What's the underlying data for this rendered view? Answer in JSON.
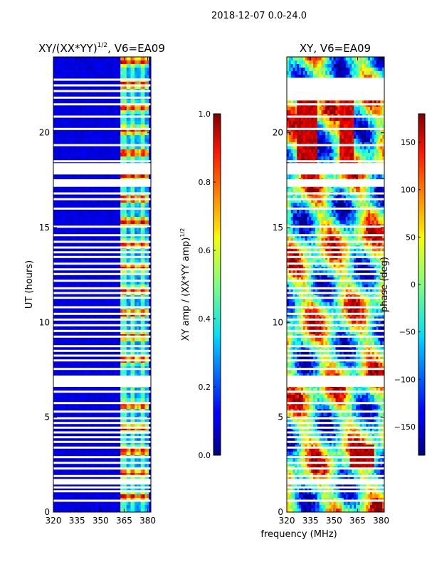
{
  "suptitle": "2018-12-07 0.0-24.0",
  "xlabel": "frequency (MHz)",
  "ylabel": "UT (hours)",
  "chart_data": [
    {
      "type": "heatmap",
      "id": "amp",
      "title": "XY/(XX*YY)",
      "title_sup": "1/2",
      "title_tail": ", V6=EA09",
      "x_range": [
        320,
        382
      ],
      "x_ticks": [
        320,
        335,
        350,
        365,
        380
      ],
      "y_range": [
        0,
        24
      ],
      "y_ticks": [
        0,
        5,
        10,
        15,
        20
      ],
      "description": "normalized XY amplitude per frequency channel and UT; mostly low (~0.05), elevated 0.3-0.9 in channels 363-381 MHz",
      "flagged_ut_hours": [
        0.6,
        1.1,
        1.3,
        1.55,
        1.9,
        2.3,
        2.6,
        2.9,
        3.4,
        3.7,
        3.95,
        4.2,
        4.45,
        4.7,
        4.95,
        5.3,
        5.75,
        6.35,
        6.9,
        7.1,
        7.55,
        8.0,
        8.25,
        8.5,
        8.75,
        9.25,
        9.55,
        9.85,
        10.15,
        10.45,
        10.8,
        11.3,
        11.55,
        11.8,
        12.2,
        12.55,
        12.8,
        13.1,
        13.45,
        13.7,
        13.95,
        14.25,
        14.6,
        15.05,
        16.0,
        16.5,
        16.8,
        17.35,
        18.5,
        19.35,
        20.2,
        20.85,
        21.5,
        21.85,
        22.2,
        22.5,
        22.8
      ],
      "flagged_ut_ranges": [
        [
          1.45,
          1.75
        ],
        [
          6.6,
          7.2
        ],
        [
          17.15,
          17.55
        ],
        [
          17.8,
          18.4
        ]
      ],
      "colorbar": {
        "label": "XY amp / (XX*YY amp)",
        "label_sup": "1/2",
        "range": [
          0.0,
          1.0
        ],
        "ticks": [
          "0.0",
          "0.2",
          "0.4",
          "0.6",
          "0.8",
          "1.0"
        ]
      }
    },
    {
      "type": "heatmap",
      "id": "phase",
      "title": "XY, V6=EA09",
      "x_range": [
        320,
        382
      ],
      "x_ticks": [
        320,
        335,
        350,
        365,
        380
      ],
      "y_range": [
        0,
        24
      ],
      "y_ticks": [
        0,
        5,
        10,
        15,
        20
      ],
      "description": "XY phase in degrees per frequency channel and UT; wide spread -180 to 180 with banded structure",
      "flagged_ut_hours": [
        0.6,
        1.1,
        1.3,
        1.55,
        1.9,
        2.3,
        2.6,
        2.9,
        3.4,
        3.7,
        3.95,
        4.2,
        4.45,
        4.7,
        4.95,
        5.3,
        5.75,
        6.35,
        6.9,
        7.1,
        7.55,
        8.0,
        8.25,
        8.5,
        8.75,
        9.25,
        9.55,
        9.85,
        10.15,
        10.45,
        10.8,
        11.3,
        11.55,
        11.8,
        12.2,
        12.55,
        12.8,
        13.1,
        13.45,
        13.7,
        13.95,
        14.25,
        14.6,
        15.05,
        16.0,
        16.5,
        16.8,
        17.35,
        18.5,
        19.35,
        20.2,
        20.85,
        21.5,
        21.85,
        22.2,
        22.5,
        22.8
      ],
      "flagged_ut_ranges": [
        [
          1.45,
          1.75
        ],
        [
          6.6,
          7.2
        ],
        [
          17.15,
          17.55
        ],
        [
          17.8,
          18.4
        ],
        [
          21.7,
          22.9
        ]
      ],
      "colorbar": {
        "label": "phase (deg)",
        "range": [
          -180,
          180
        ],
        "ticks": [
          "−150",
          "−100",
          "−50",
          "0",
          "50",
          "100",
          "150"
        ]
      }
    }
  ]
}
